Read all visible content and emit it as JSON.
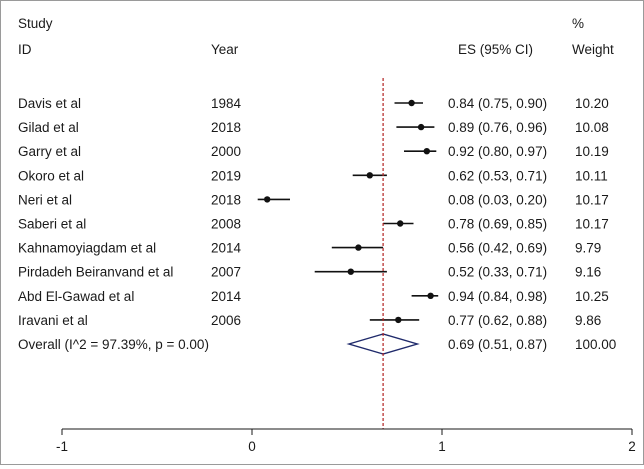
{
  "chart_data": {
    "type": "forest",
    "headers": {
      "study_line1": "Study",
      "study_line2": "ID",
      "year": "Year",
      "es": "ES (95% CI)",
      "weight_line1": "%",
      "weight_line2": "Weight"
    },
    "studies": [
      {
        "id": "Davis et al",
        "year": "1984",
        "es": 0.84,
        "lo": 0.75,
        "hi": 0.9,
        "es_text": "0.84 (0.75, 0.90)",
        "weight": "10.20"
      },
      {
        "id": "Gilad et al",
        "year": "2018",
        "es": 0.89,
        "lo": 0.76,
        "hi": 0.96,
        "es_text": "0.89 (0.76, 0.96)",
        "weight": "10.08"
      },
      {
        "id": "Garry et al",
        "year": "2000",
        "es": 0.92,
        "lo": 0.8,
        "hi": 0.97,
        "es_text": "0.92 (0.80, 0.97)",
        "weight": "10.19"
      },
      {
        "id": "Okoro et al",
        "year": "2019",
        "es": 0.62,
        "lo": 0.53,
        "hi": 0.71,
        "es_text": "0.62 (0.53, 0.71)",
        "weight": "10.11"
      },
      {
        "id": "Neri et al",
        "year": "2018",
        "es": 0.08,
        "lo": 0.03,
        "hi": 0.2,
        "es_text": "0.08 (0.03, 0.20)",
        "weight": "10.17"
      },
      {
        "id": "Saberi et al",
        "year": "2008",
        "es": 0.78,
        "lo": 0.69,
        "hi": 0.85,
        "es_text": "0.78 (0.69, 0.85)",
        "weight": "10.17"
      },
      {
        "id": "Kahnamoyiagdam et al",
        "year": "2014",
        "es": 0.56,
        "lo": 0.42,
        "hi": 0.69,
        "es_text": "0.56 (0.42, 0.69)",
        "weight": "9.79"
      },
      {
        "id": "Pirdadeh Beiranvand et al",
        "year": "2007",
        "es": 0.52,
        "lo": 0.33,
        "hi": 0.71,
        "es_text": "0.52 (0.33, 0.71)",
        "weight": "9.16"
      },
      {
        "id": "Abd El-Gawad et al",
        "year": "2014",
        "es": 0.94,
        "lo": 0.84,
        "hi": 0.98,
        "es_text": "0.94 (0.84, 0.98)",
        "weight": "10.25"
      },
      {
        "id": "Iravani et al",
        "year": "2006",
        "es": 0.77,
        "lo": 0.62,
        "hi": 0.88,
        "es_text": "0.77 (0.62, 0.88)",
        "weight": "9.86"
      }
    ],
    "overall": {
      "label": "Overall  (I^2 = 97.39%, p = 0.00)",
      "es": 0.69,
      "lo": 0.51,
      "hi": 0.87,
      "es_text": "0.69 (0.51, 0.87)",
      "weight": "100.00"
    },
    "x_ticks": [
      -1,
      0,
      1,
      2
    ],
    "x_tick_labels": [
      "-1",
      "0",
      "1",
      "2"
    ],
    "xlim": [
      -1,
      2
    ],
    "reference_line": 0.69,
    "colors": {
      "marker": "#111111",
      "diamond": "#1f2a6b",
      "reference_line": "#b22222",
      "text": "#1a1a1a"
    }
  }
}
